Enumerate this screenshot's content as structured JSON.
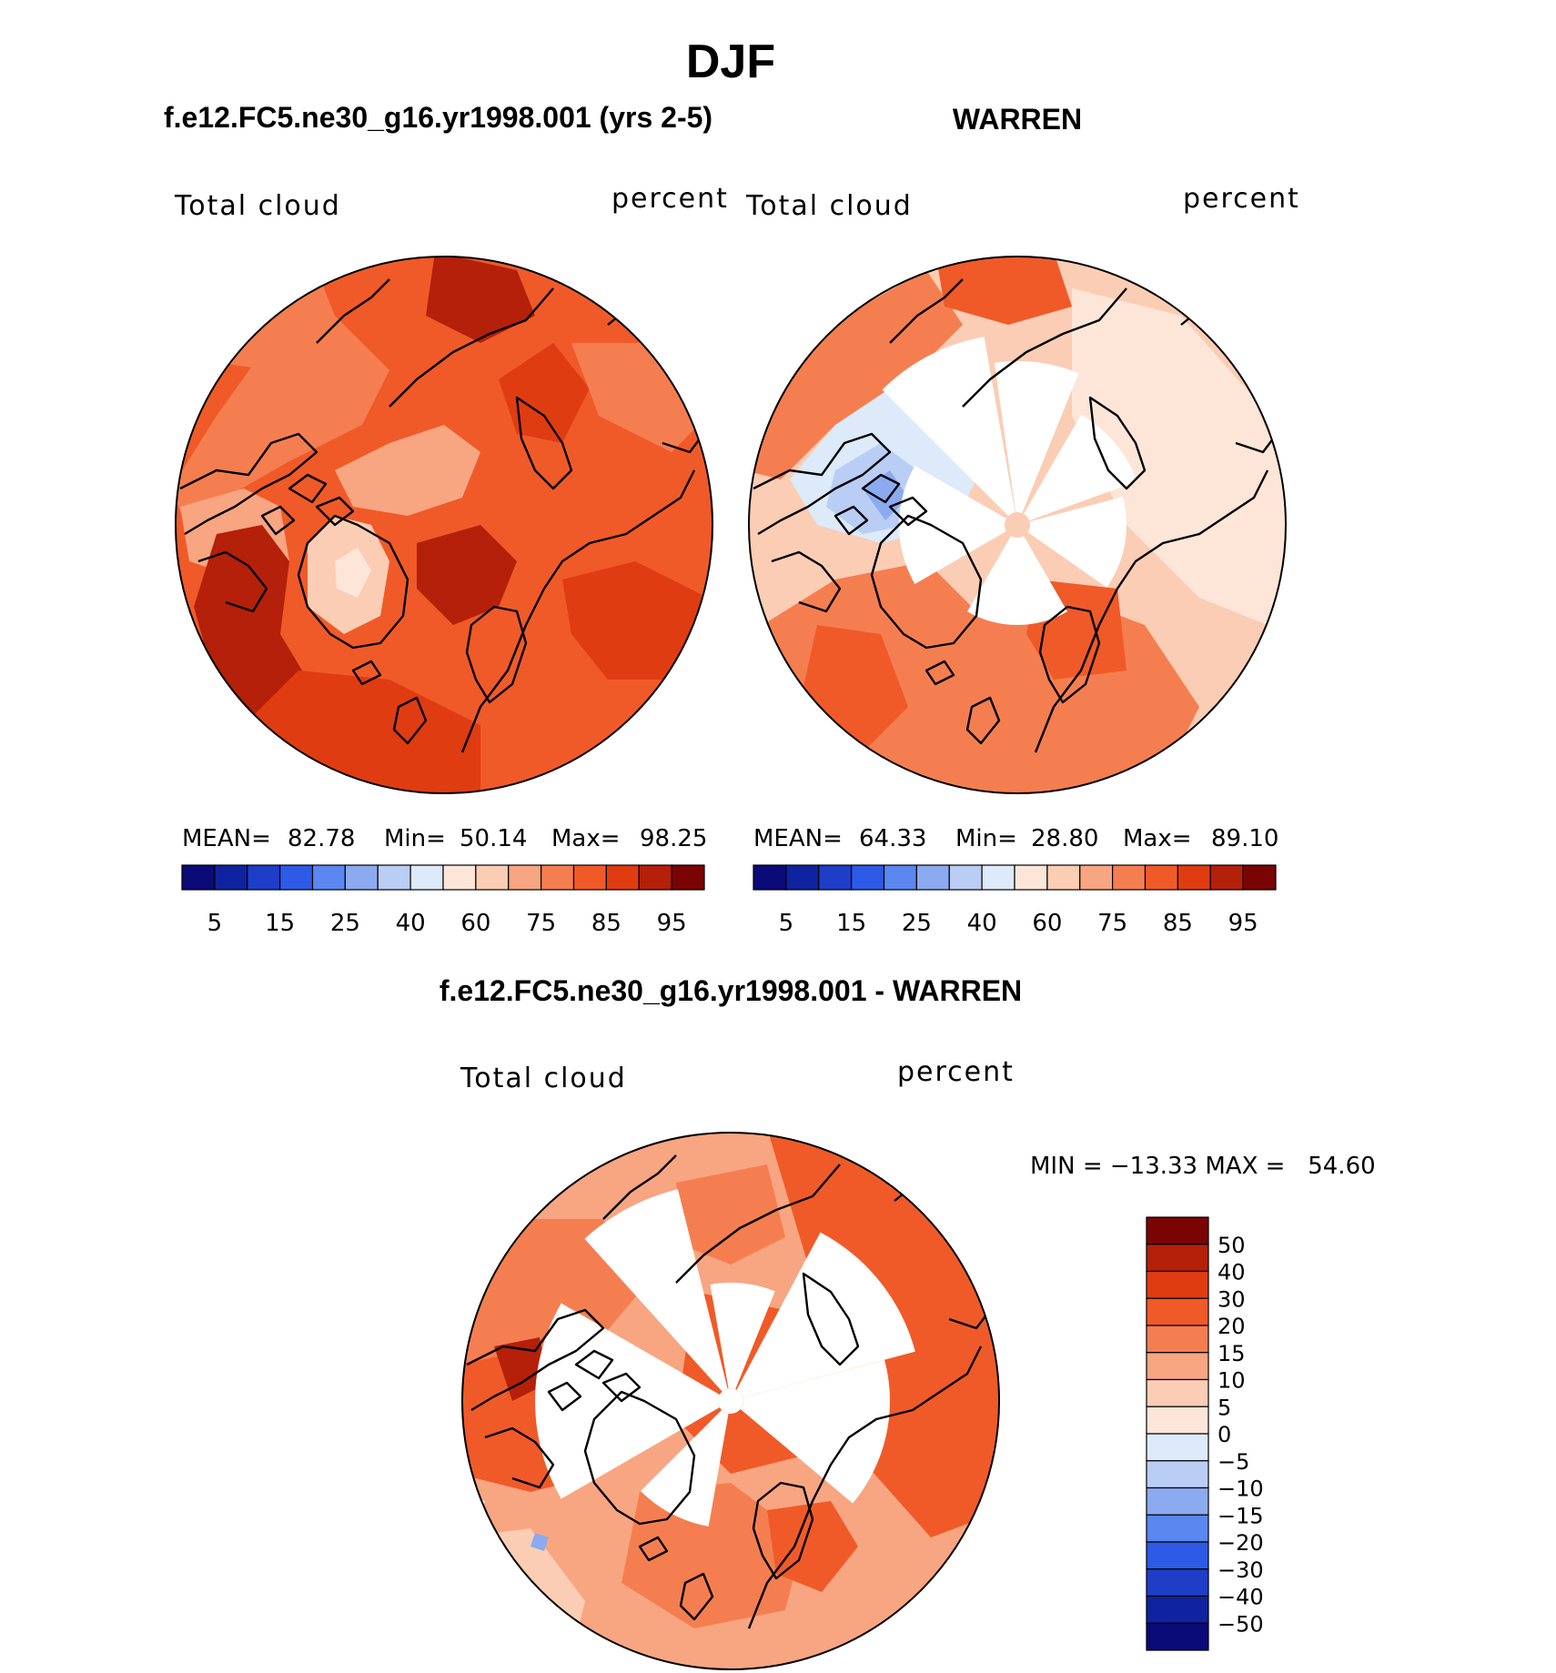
{
  "figure": {
    "season_title": "DJF",
    "panels": [
      {
        "title": "f.e12.FC5.ne30_g16.yr1998.001 (yrs 2-5)",
        "left_label": "Total cloud",
        "right_label": "percent",
        "stats": {
          "mean_label": "MEAN=",
          "mean": "82.78",
          "min_label": "Min=",
          "min": "50.14",
          "max_label": "Max=",
          "max": "98.25"
        }
      },
      {
        "title": "WARREN",
        "left_label": "Total cloud",
        "right_label": "percent",
        "stats": {
          "mean_label": "MEAN=",
          "mean": "64.33",
          "min_label": "Min=",
          "min": "28.80",
          "max_label": "Max=",
          "max": "89.10"
        }
      },
      {
        "title": "f.e12.FC5.ne30_g16.yr1998.001 - WARREN",
        "left_label": "Total cloud",
        "right_label": "percent",
        "stats_line": "MIN = −13.33 MAX =   54.60"
      }
    ],
    "abs_colorbar": {
      "colors": [
        "#0a0a78",
        "#0f23a0",
        "#1e3ec8",
        "#2d5ae6",
        "#5a87f0",
        "#8caaf0",
        "#b9cdf5",
        "#dceaf9",
        "#fde6d8",
        "#fbcdb4",
        "#f8a582",
        "#f57e50",
        "#f05a28",
        "#e03c12",
        "#b4200a",
        "#7a0404"
      ],
      "tick_labels": [
        "5",
        "15",
        "25",
        "40",
        "60",
        "75",
        "85",
        "95"
      ]
    },
    "diff_colorbar": {
      "colors_top_to_bottom": [
        "#7a0404",
        "#b4200a",
        "#e03c12",
        "#f05a28",
        "#f57e50",
        "#f8a582",
        "#fbcdb4",
        "#fde6d8",
        "#dceaf9",
        "#b9cdf5",
        "#8caaf0",
        "#5a87f0",
        "#2d5ae6",
        "#1e3ec8",
        "#0f23a0",
        "#0a0a78"
      ],
      "tick_labels": [
        "50",
        "40",
        "30",
        "20",
        "15",
        "10",
        "5",
        "0",
        "−5",
        "−10",
        "−15",
        "−20",
        "−30",
        "−40",
        "−50"
      ]
    },
    "map_colors": {
      "dark": "#b4200a",
      "mid": "#e03c12",
      "base": "#f05a28",
      "light": "#f57e50",
      "pale": "#f8a582",
      "paler": "#fbcdb4",
      "palest": "#fde6d8",
      "blue_light": "#dceaf9",
      "blue_mid": "#b9cdf5",
      "blue": "#8caaf0",
      "coast": "#000000"
    }
  }
}
